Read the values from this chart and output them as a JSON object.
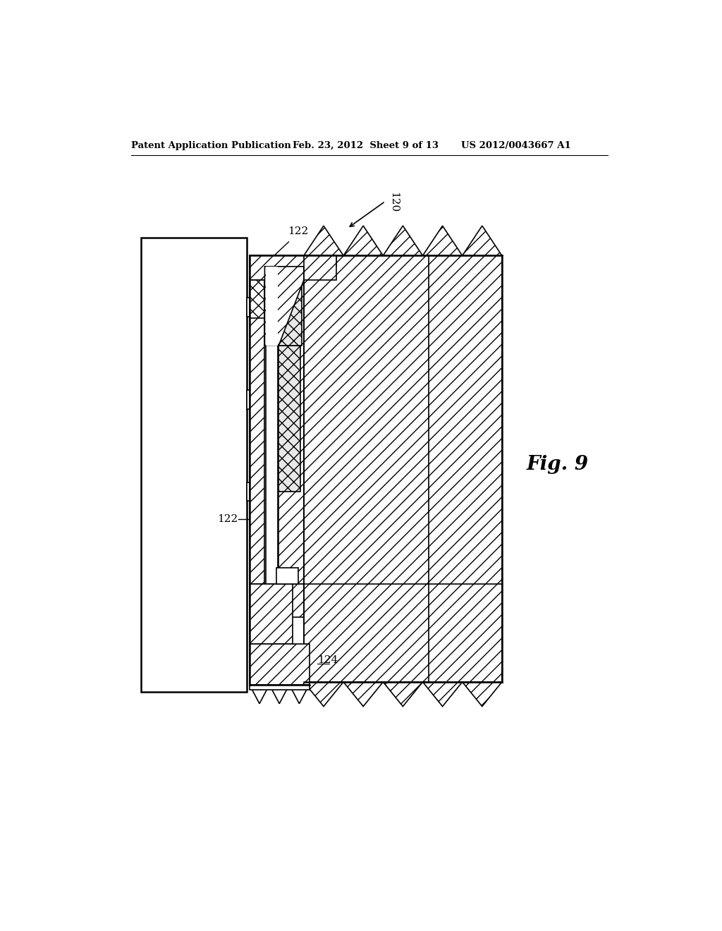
{
  "bg_color": "#ffffff",
  "line_color": "#000000",
  "header_left": "Patent Application Publication",
  "header_mid": "Feb. 23, 2012  Sheet 9 of 13",
  "header_right": "US 2012/0043667 A1",
  "fig_label": "Fig. 9",
  "label_120": "120",
  "label_122a": "122",
  "label_122b": "122",
  "label_124": "124"
}
